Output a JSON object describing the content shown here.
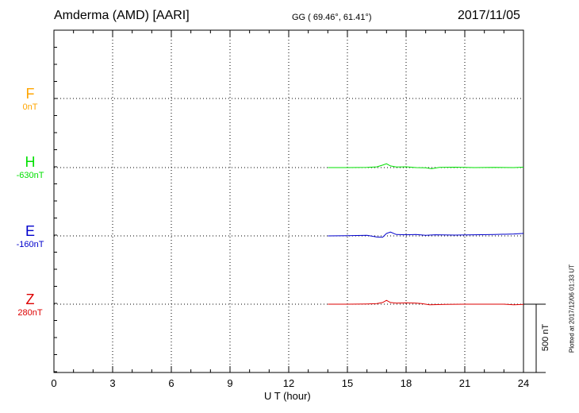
{
  "header": {
    "title": "Amderma (AMD)  [AARI]",
    "coords": "GG ( 69.46°,  61.41°)",
    "date": "2017/11/05"
  },
  "footer": {
    "xlabel": "U T (hour)",
    "plotted": "Plotted at 2017/12/06 01:33 UT",
    "scale_label": "500 nT"
  },
  "chart_data": {
    "type": "line",
    "x_ticks": [
      0,
      3,
      6,
      9,
      12,
      15,
      18,
      21,
      24
    ],
    "xlim": [
      0,
      24
    ],
    "scale_bar_nT": 500,
    "series": [
      {
        "name": "F",
        "base_label": "0nT",
        "color": "#ffa500",
        "x": [],
        "y": []
      },
      {
        "name": "H",
        "base_label": "-630nT",
        "color": "#00e000",
        "x": [
          14.0,
          15.0,
          16.0,
          16.5,
          16.8,
          17.0,
          17.2,
          17.5,
          18.0,
          18.5,
          19.0,
          19.3,
          19.7,
          20.5,
          21.5,
          22.5,
          23.5,
          24.0
        ],
        "y": [
          0,
          0,
          2,
          5,
          18,
          28,
          12,
          4,
          6,
          0,
          -2,
          -8,
          2,
          3,
          0,
          2,
          0,
          3
        ]
      },
      {
        "name": "E",
        "base_label": "-160nT",
        "color": "#0000cc",
        "x": [
          14.0,
          15.0,
          16.0,
          16.5,
          16.8,
          17.0,
          17.2,
          17.5,
          18.0,
          18.5,
          19.0,
          19.5,
          20.5,
          21.5,
          22.5,
          23.5,
          24.0
        ],
        "y": [
          0,
          2,
          4,
          -8,
          -10,
          18,
          28,
          10,
          8,
          10,
          4,
          8,
          6,
          8,
          10,
          14,
          18
        ]
      },
      {
        "name": "Z",
        "base_label": "280nT",
        "color": "#dd0000",
        "x": [
          14.0,
          15.0,
          16.0,
          16.5,
          16.8,
          17.0,
          17.2,
          17.5,
          18.0,
          18.5,
          18.8,
          19.2,
          20.0,
          21.0,
          22.0,
          23.0,
          23.5,
          24.0
        ],
        "y": [
          0,
          0,
          2,
          4,
          12,
          28,
          12,
          8,
          10,
          8,
          4,
          -4,
          -2,
          0,
          0,
          0,
          -4,
          -2
        ]
      }
    ]
  }
}
